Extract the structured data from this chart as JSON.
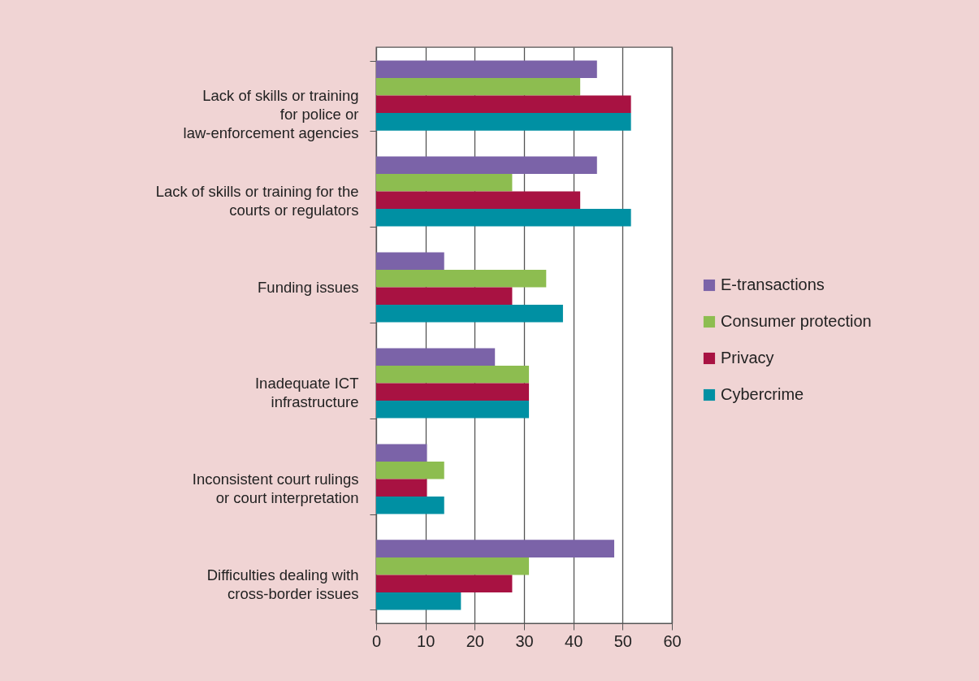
{
  "chart_data": {
    "type": "bar",
    "orientation": "horizontal",
    "categories": [
      "Lack of skills or training\nfor police or\nlaw-enforcement agencies",
      "Lack of skills or training for the\ncourts or regulators",
      "Funding issues",
      "Inadequate ICT\ninfrastructure",
      "Inconsistent court rulings\nor court interpretation",
      "Difficulties dealing with\ncross-border issues"
    ],
    "series": [
      {
        "name": "E-transactions",
        "color": "#7b63a8",
        "values": [
          44.8,
          44.8,
          13.8,
          24.1,
          10.3,
          48.3
        ]
      },
      {
        "name": "Consumer protection",
        "color": "#8dbd50",
        "values": [
          41.4,
          27.6,
          34.5,
          31.0,
          13.8,
          31.0
        ]
      },
      {
        "name": "Privacy",
        "color": "#a81242",
        "values": [
          51.7,
          41.4,
          27.6,
          31.0,
          10.3,
          27.6
        ]
      },
      {
        "name": "Cybercrime",
        "color": "#0090a3",
        "values": [
          51.7,
          51.7,
          37.9,
          31.0,
          13.8,
          17.2
        ]
      }
    ],
    "xlim": [
      0,
      60
    ],
    "xticks": [
      0,
      10,
      20,
      30,
      40,
      50,
      60
    ],
    "grid": "x",
    "legend": "right"
  }
}
